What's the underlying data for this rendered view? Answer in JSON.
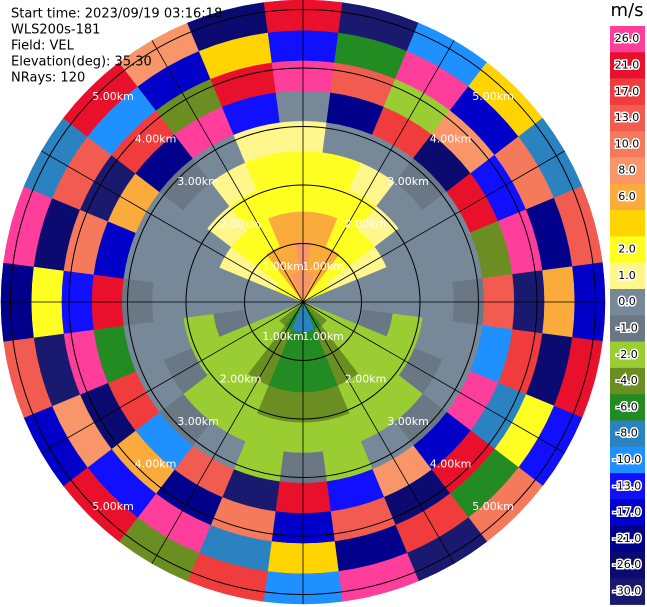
{
  "info": [
    "Start time: 2023/09/19 03:16:18",
    "WLS200s-181",
    "Field: VEL",
    "Elevation(deg): 35.30",
    "NRays: 120"
  ],
  "colorbar": {
    "title": "m/s",
    "levels": [
      {
        "value": 26,
        "label": "26.0",
        "color": "#ff3d9a"
      },
      {
        "value": 21,
        "label": "21.0",
        "color": "#e8102a"
      },
      {
        "value": 17,
        "label": "17.0",
        "color": "#f03c3c"
      },
      {
        "value": 13,
        "label": "13.0",
        "color": "#f25c50"
      },
      {
        "value": 10,
        "label": "10.0",
        "color": "#f57a5c"
      },
      {
        "value": 8,
        "label": "8.0",
        "color": "#f8966a"
      },
      {
        "value": 6,
        "label": "6.0",
        "color": "#fbab3c"
      },
      {
        "value": 4,
        "label": null,
        "color": "#ffd400"
      },
      {
        "value": 2,
        "label": "2.0",
        "color": "#ffff22"
      },
      {
        "value": 1,
        "label": "1.0",
        "color": "#fff68c"
      },
      {
        "value": 0,
        "label": "0.0",
        "color": "#778899"
      },
      {
        "value": -1,
        "label": "-1.0",
        "color": "#6a7886"
      },
      {
        "value": -2,
        "label": "-2.0",
        "color": "#9acd32"
      },
      {
        "value": -4,
        "label": "-4.0",
        "color": "#6b8e23"
      },
      {
        "value": -6,
        "label": "-6.0",
        "color": "#228b22"
      },
      {
        "value": -8,
        "label": "-8.0",
        "color": "#2a82c0"
      },
      {
        "value": -10,
        "label": "-10.0",
        "color": "#1e90ff"
      },
      {
        "value": -13,
        "label": "-13.0",
        "color": "#1010ff"
      },
      {
        "value": -17,
        "label": "-17.0",
        "color": "#0000c8"
      },
      {
        "value": -21,
        "label": "-21.0",
        "color": "#00008b"
      },
      {
        "value": -26,
        "label": "-26.0",
        "color": "#0a0a70"
      },
      {
        "value": -30,
        "label": "-30.0",
        "color": "#191970"
      }
    ]
  },
  "rings": [
    "1.00km",
    "2.00km",
    "3.00km",
    "4.00km",
    "5.00km"
  ],
  "field": {
    "rays": [
      [
        8,
        8,
        6,
        2,
        2,
        1,
        0,
        26,
        -13,
        21
      ],
      [
        8,
        6,
        6,
        2,
        2,
        0,
        -21,
        13,
        -6,
        -30
      ],
      [
        6,
        6,
        2,
        2,
        1,
        0,
        17,
        -2,
        26,
        -10
      ],
      [
        2,
        2,
        2,
        1,
        0,
        -1,
        -26,
        8,
        -17,
        4
      ],
      [
        2,
        1,
        1,
        0,
        0,
        0,
        21,
        -13,
        10,
        -8
      ],
      [
        0,
        0,
        0,
        0,
        0,
        0,
        -4,
        26,
        -21,
        13
      ],
      [
        0,
        0,
        0,
        0,
        0,
        -1,
        13,
        -30,
        6,
        -17
      ],
      [
        0,
        0,
        -1,
        -2,
        0,
        0,
        -10,
        17,
        -26,
        21
      ],
      [
        -2,
        -2,
        -2,
        -2,
        -1,
        0,
        26,
        -8,
        2,
        -13
      ],
      [
        -4,
        -2,
        -2,
        -2,
        -2,
        -1,
        -17,
        21,
        -6,
        10
      ],
      [
        -6,
        -4,
        -4,
        -2,
        -2,
        0,
        8,
        -26,
        17,
        -30
      ],
      [
        -8,
        -6,
        -6,
        -4,
        -2,
        -2,
        -13,
        13,
        -21,
        26
      ],
      [
        -8,
        -6,
        -6,
        -4,
        -2,
        -1,
        21,
        -17,
        4,
        -10
      ],
      [
        -8,
        -6,
        -6,
        -4,
        -2,
        -2,
        -30,
        10,
        -8,
        17
      ],
      [
        -6,
        -4,
        -4,
        -2,
        -2,
        0,
        13,
        -21,
        26,
        -4
      ],
      [
        -4,
        -2,
        -2,
        -2,
        -2,
        -1,
        -10,
        6,
        -13,
        21
      ],
      [
        -2,
        -2,
        -2,
        -2,
        -1,
        0,
        17,
        -26,
        8,
        -17
      ],
      [
        0,
        0,
        -1,
        -2,
        0,
        0,
        -6,
        26,
        -30,
        13
      ],
      [
        0,
        0,
        0,
        0,
        0,
        -1,
        21,
        -13,
        2,
        -21
      ],
      [
        0,
        0,
        0,
        0,
        0,
        0,
        -17,
        10,
        -26,
        26
      ],
      [
        2,
        1,
        1,
        0,
        0,
        0,
        6,
        -30,
        13,
        -8
      ],
      [
        2,
        2,
        2,
        1,
        0,
        -1,
        -21,
        17,
        -10,
        21
      ],
      [
        6,
        6,
        2,
        2,
        1,
        0,
        26,
        -4,
        -17,
        8
      ],
      [
        8,
        6,
        6,
        2,
        2,
        1,
        -13,
        21,
        4,
        -26
      ]
    ]
  }
}
